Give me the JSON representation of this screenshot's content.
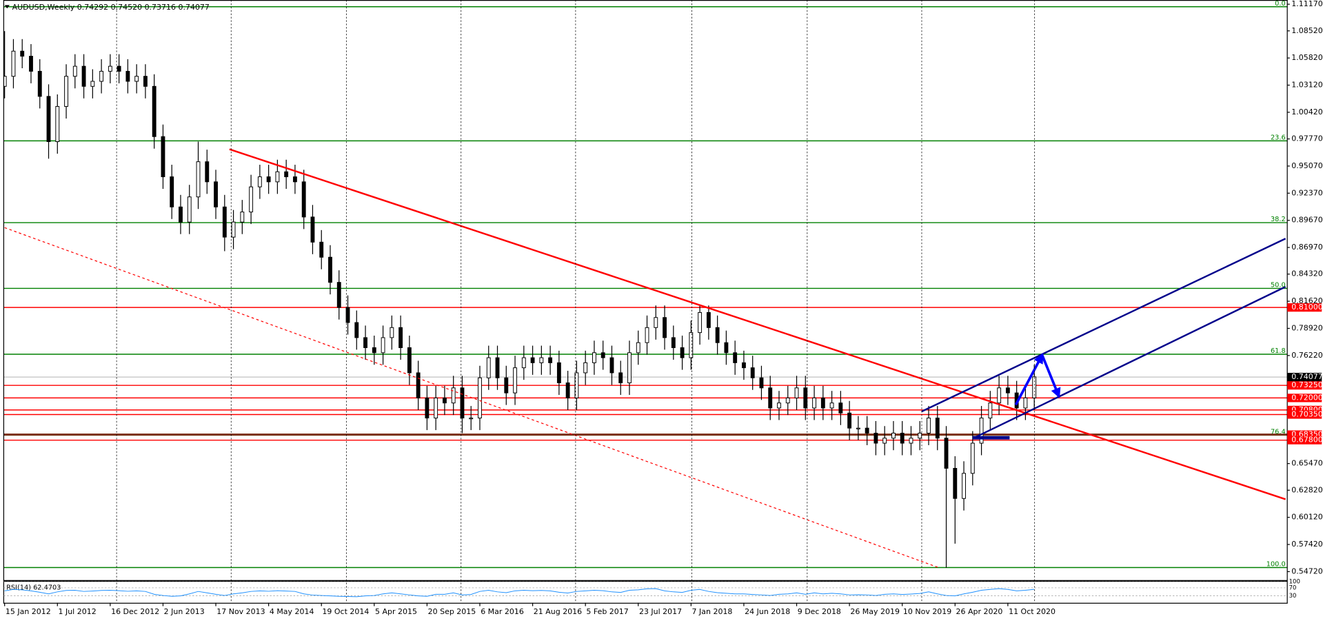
{
  "chart_data": {
    "type": "candlestick",
    "title": "AUDUSD,Weekly  0.74292 0.74520 0.73716 0.74077",
    "categories": [
      "15 Jan 2012",
      null,
      null,
      null,
      null,
      null,
      "1 Jul 2012",
      null,
      null,
      null,
      null,
      null,
      "16 Dec 2012",
      null,
      null,
      null,
      null,
      null,
      "2 Jun 2013",
      null,
      null,
      null,
      null,
      null,
      "17 Nov 2013",
      null,
      null,
      null,
      null,
      null,
      "4 May 2014",
      null,
      null,
      null,
      null,
      null,
      "19 Oct 2014",
      null,
      null,
      null,
      null,
      null,
      "5 Apr 2015",
      null,
      null,
      null,
      null,
      null,
      "20 Sep 2015",
      null,
      null,
      null,
      null,
      null,
      "6 Mar 2016",
      null,
      null,
      null,
      null,
      null,
      "21 Aug 2016",
      null,
      null,
      null,
      null,
      null,
      "5 Feb 2017",
      null,
      null,
      null,
      null,
      null,
      "23 Jul 2017",
      null,
      null,
      null,
      null,
      null,
      "7 Jan 2018",
      null,
      null,
      null,
      null,
      null,
      "24 Jun 2018",
      null,
      null,
      null,
      null,
      null,
      "9 Dec 2018",
      null,
      null,
      null,
      null,
      null,
      "26 May 2019",
      null,
      null,
      null,
      null,
      null,
      "10 Nov 2019",
      null,
      null,
      null,
      null,
      null,
      "26 Apr 2020",
      null,
      null,
      null,
      null,
      null,
      "11 Oct 2020",
      null,
      null,
      null
    ],
    "open": [
      1.03,
      1.04,
      1.065,
      1.06,
      1.045,
      1.02,
      0.975,
      1.01,
      1.04,
      1.05,
      1.03,
      1.035,
      1.045,
      1.05,
      1.045,
      1.035,
      1.04,
      1.03,
      0.98,
      0.94,
      0.91,
      0.895,
      0.92,
      0.955,
      0.935,
      0.91,
      0.88,
      0.895,
      0.905,
      0.93,
      0.94,
      0.935,
      0.945,
      0.94,
      0.935,
      0.9,
      0.875,
      0.86,
      0.835,
      0.81,
      0.795,
      0.78,
      0.77,
      0.765,
      0.78,
      0.79,
      0.77,
      0.745,
      0.72,
      0.7,
      0.72,
      0.715,
      0.73,
      0.7,
      0.7,
      0.74,
      0.76,
      0.74,
      0.725,
      0.75,
      0.76,
      0.755,
      0.76,
      0.755,
      0.735,
      0.72,
      0.745,
      0.755,
      0.765,
      0.76,
      0.745,
      0.735,
      0.765,
      0.775,
      0.79,
      0.8,
      0.78,
      0.77,
      0.76,
      0.785,
      0.805,
      0.79,
      0.775,
      0.765,
      0.755,
      0.75,
      0.74,
      0.73,
      0.71,
      0.715,
      0.72,
      0.73,
      0.71,
      0.72,
      0.71,
      0.715,
      0.705,
      0.69,
      0.69,
      0.685,
      0.675,
      0.68,
      0.685,
      0.675,
      0.68,
      0.685,
      0.7,
      0.68,
      0.65,
      0.62,
      0.645,
      0.675,
      0.7,
      0.715,
      0.73,
      0.725,
      0.71,
      0.72
    ],
    "high": [
      1.085,
      1.077,
      1.077,
      1.072,
      1.057,
      1.032,
      1.022,
      1.052,
      1.062,
      1.062,
      1.047,
      1.057,
      1.062,
      1.062,
      1.057,
      1.052,
      1.052,
      1.042,
      0.992,
      0.952,
      0.922,
      0.932,
      0.975,
      0.967,
      0.947,
      0.922,
      0.907,
      0.917,
      0.942,
      0.952,
      0.952,
      0.957,
      0.957,
      0.952,
      0.947,
      0.912,
      0.887,
      0.872,
      0.847,
      0.822,
      0.807,
      0.792,
      0.782,
      0.792,
      0.802,
      0.802,
      0.782,
      0.757,
      0.732,
      0.732,
      0.732,
      0.742,
      0.742,
      0.712,
      0.752,
      0.772,
      0.772,
      0.752,
      0.762,
      0.772,
      0.772,
      0.772,
      0.772,
      0.767,
      0.747,
      0.757,
      0.767,
      0.777,
      0.777,
      0.772,
      0.757,
      0.777,
      0.787,
      0.802,
      0.812,
      0.812,
      0.792,
      0.782,
      0.797,
      0.813,
      0.812,
      0.802,
      0.787,
      0.777,
      0.767,
      0.762,
      0.752,
      0.742,
      0.727,
      0.732,
      0.742,
      0.742,
      0.732,
      0.732,
      0.727,
      0.727,
      0.717,
      0.702,
      0.702,
      0.697,
      0.692,
      0.697,
      0.697,
      0.692,
      0.697,
      0.712,
      0.712,
      0.692,
      0.662,
      0.657,
      0.687,
      0.712,
      0.727,
      0.742,
      0.742,
      0.737,
      0.732,
      0.753
    ],
    "low": [
      1.018,
      1.028,
      1.048,
      1.033,
      1.008,
      0.958,
      0.963,
      0.998,
      1.028,
      1.018,
      1.018,
      1.023,
      1.033,
      1.033,
      1.023,
      1.023,
      1.018,
      0.968,
      0.928,
      0.898,
      0.883,
      0.883,
      0.908,
      0.923,
      0.898,
      0.866,
      0.868,
      0.883,
      0.893,
      0.918,
      0.923,
      0.923,
      0.928,
      0.923,
      0.888,
      0.863,
      0.848,
      0.823,
      0.798,
      0.783,
      0.768,
      0.758,
      0.753,
      0.753,
      0.768,
      0.758,
      0.733,
      0.708,
      0.688,
      0.688,
      0.703,
      0.703,
      0.685,
      0.688,
      0.688,
      0.728,
      0.728,
      0.713,
      0.713,
      0.738,
      0.743,
      0.743,
      0.743,
      0.723,
      0.708,
      0.708,
      0.733,
      0.743,
      0.748,
      0.733,
      0.723,
      0.723,
      0.753,
      0.763,
      0.778,
      0.768,
      0.758,
      0.748,
      0.748,
      0.773,
      0.778,
      0.763,
      0.753,
      0.743,
      0.738,
      0.728,
      0.718,
      0.698,
      0.698,
      0.703,
      0.708,
      0.698,
      0.698,
      0.698,
      0.698,
      0.693,
      0.678,
      0.678,
      0.673,
      0.663,
      0.663,
      0.668,
      0.663,
      0.663,
      0.668,
      0.673,
      0.668,
      0.551,
      0.575,
      0.608,
      0.633,
      0.663,
      0.688,
      0.703,
      0.713,
      0.698,
      0.698,
      0.708
    ],
    "close": [
      1.04,
      1.065,
      1.06,
      1.045,
      1.02,
      0.975,
      1.01,
      1.04,
      1.05,
      1.03,
      1.035,
      1.045,
      1.05,
      1.045,
      1.035,
      1.04,
      1.03,
      0.98,
      0.94,
      0.91,
      0.895,
      0.92,
      0.955,
      0.935,
      0.91,
      0.88,
      0.895,
      0.905,
      0.93,
      0.94,
      0.935,
      0.945,
      0.94,
      0.935,
      0.9,
      0.875,
      0.86,
      0.835,
      0.81,
      0.795,
      0.78,
      0.77,
      0.765,
      0.78,
      0.79,
      0.77,
      0.745,
      0.72,
      0.7,
      0.72,
      0.715,
      0.73,
      0.7,
      0.7,
      0.74,
      0.76,
      0.74,
      0.725,
      0.75,
      0.76,
      0.755,
      0.76,
      0.755,
      0.735,
      0.72,
      0.745,
      0.755,
      0.765,
      0.76,
      0.745,
      0.735,
      0.765,
      0.775,
      0.79,
      0.8,
      0.78,
      0.77,
      0.76,
      0.785,
      0.805,
      0.79,
      0.775,
      0.765,
      0.755,
      0.75,
      0.74,
      0.73,
      0.71,
      0.715,
      0.72,
      0.73,
      0.71,
      0.72,
      0.71,
      0.715,
      0.705,
      0.69,
      0.69,
      0.685,
      0.675,
      0.68,
      0.685,
      0.675,
      0.68,
      0.685,
      0.7,
      0.68,
      0.65,
      0.62,
      0.645,
      0.675,
      0.7,
      0.715,
      0.73,
      0.725,
      0.71,
      0.72,
      0.741
    ],
    "color": "#000000",
    "up_fill": "#ffffff",
    "xlim": [
      -0.1,
      145.75
    ],
    "ylim": [
      0.5388,
      1.1159
    ],
    "yticks": [
      {
        "value": 1.1117,
        "label": "1.11170"
      },
      {
        "value": 1.0852,
        "label": "1.08520"
      },
      {
        "value": 1.0582,
        "label": "1.05820"
      },
      {
        "value": 1.0312,
        "label": "1.03120"
      },
      {
        "value": 1.0042,
        "label": "1.00420"
      },
      {
        "value": 0.9777,
        "label": "0.97770"
      },
      {
        "value": 0.9507,
        "label": "0.95070"
      },
      {
        "value": 0.9237,
        "label": "0.92370"
      },
      {
        "value": 0.8967,
        "label": "0.89670"
      },
      {
        "value": 0.8697,
        "label": "0.86970"
      },
      {
        "value": 0.8432,
        "label": "0.84320"
      },
      {
        "value": 0.8162,
        "label": "0.81620"
      },
      {
        "value": 0.7892,
        "label": "0.78920"
      },
      {
        "value": 0.7622,
        "label": "0.76220"
      },
      {
        "value": 0.6547,
        "label": "0.65470"
      },
      {
        "value": 0.6282,
        "label": "0.62820"
      },
      {
        "value": 0.6012,
        "label": "0.60120"
      },
      {
        "value": 0.5742,
        "label": "0.57420"
      },
      {
        "value": 0.5472,
        "label": "0.54720"
      }
    ],
    "fibonacci": [
      {
        "label": "0.0",
        "price": 1.1092
      },
      {
        "label": "23.6",
        "price": 0.9758
      },
      {
        "label": "38.2",
        "price": 0.8944
      },
      {
        "label": "50.0",
        "price": 0.829
      },
      {
        "label": "61.8",
        "price": 0.7635
      },
      {
        "label": "76.4",
        "price": 0.683
      },
      {
        "label": "100.0",
        "price": 0.5513
      }
    ],
    "fib_color": "#008000",
    "levels": [
      {
        "value": 0.81,
        "label": "0.81000"
      },
      {
        "value": 0.7325,
        "label": "0.73250"
      },
      {
        "value": 0.72,
        "label": "0.72000"
      },
      {
        "value": 0.708,
        "label": "0.70800"
      },
      {
        "value": 0.7035,
        "label": "0.70350"
      },
      {
        "value": 0.6835,
        "label": "0.68350"
      },
      {
        "value": 0.678,
        "label": "0.67800"
      }
    ],
    "level_color": "#ff0000",
    "current": {
      "value": 0.74077,
      "color": "#c0c0c0"
    },
    "trendlines": [
      {
        "color": "#ff0000",
        "width": 2,
        "dash": false,
        "arrow": false,
        "points": [
          [
            25.55,
            0.9674
          ],
          [
            145.55,
            0.6192
          ]
        ]
      },
      {
        "color": "#ff0000",
        "width": 1,
        "dash": true,
        "arrow": false,
        "points": [
          [
            0,
            0.8894
          ],
          [
            106.1,
            0.5513
          ]
        ]
      },
      {
        "color": "#00008b",
        "width": 2,
        "dash": false,
        "arrow": false,
        "points": [
          [
            104.2,
            0.7065
          ],
          [
            145.55,
            0.8785
          ]
        ]
      },
      {
        "color": "#00008b",
        "width": 2,
        "dash": false,
        "arrow": false,
        "points": [
          [
            110.0,
            0.6796
          ],
          [
            145.55,
            0.8306
          ]
        ]
      },
      {
        "color": "#00008b",
        "width": 4,
        "dash": false,
        "arrow": false,
        "points": [
          [
            110.0,
            0.6804
          ],
          [
            114.2,
            0.6804
          ]
        ]
      },
      {
        "color": "#0000ff",
        "width": 3,
        "dash": false,
        "arrow": true,
        "points": [
          [
            114.9,
            0.7132
          ],
          [
            117.9,
            0.7627
          ]
        ]
      },
      {
        "color": "#0000ff",
        "width": 3,
        "dash": false,
        "arrow": true,
        "points": [
          [
            117.9,
            0.7627
          ],
          [
            119.8,
            0.7216
          ]
        ]
      }
    ],
    "rsi": {
      "label": "RSI(14) 62.4703",
      "color": "#1e90ff",
      "ylim": [
        0,
        100
      ],
      "yticks": [
        30,
        70,
        100
      ],
      "values": [
        55,
        62,
        60,
        55,
        48,
        40,
        50,
        57,
        58,
        52,
        54,
        57,
        58,
        56,
        53,
        55,
        52,
        38,
        32,
        28,
        30,
        40,
        52,
        45,
        38,
        32,
        40,
        45,
        52,
        55,
        53,
        56,
        54,
        52,
        40,
        34,
        32,
        30,
        28,
        27,
        26,
        30,
        32,
        40,
        45,
        40,
        35,
        30,
        28,
        38,
        38,
        45,
        35,
        37,
        52,
        58,
        50,
        46,
        55,
        58,
        56,
        57,
        55,
        48,
        44,
        52,
        55,
        58,
        56,
        50,
        47,
        58,
        60,
        65,
        66,
        55,
        50,
        47,
        58,
        62,
        52,
        46,
        43,
        40,
        40,
        37,
        35,
        32,
        38,
        40,
        45,
        38,
        45,
        40,
        43,
        40,
        35,
        36,
        35,
        32,
        38,
        40,
        37,
        39,
        42,
        50,
        40,
        32,
        30,
        40,
        48,
        58,
        62,
        66,
        62,
        55,
        58,
        62.4703
      ]
    }
  }
}
